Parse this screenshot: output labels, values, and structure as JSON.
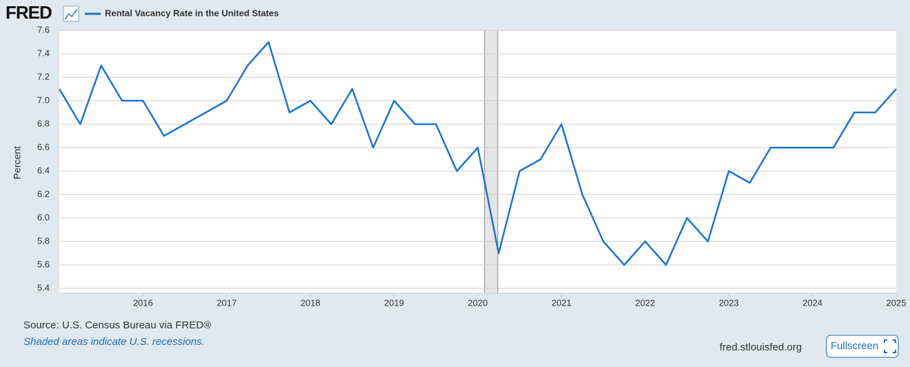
{
  "header": {
    "logo": "FRED"
  },
  "chart_data": {
    "type": "line",
    "y_label": "Percent",
    "x": [
      2015,
      2015.25,
      2015.5,
      2015.75,
      2016,
      2016.25,
      2016.5,
      2016.75,
      2017,
      2017.25,
      2017.5,
      2017.75,
      2018,
      2018.25,
      2018.5,
      2018.75,
      2019,
      2019.25,
      2019.5,
      2019.75,
      2020,
      2020.25,
      2020.5,
      2020.75,
      2021,
      2021.25,
      2021.5,
      2021.75,
      2022,
      2022.25,
      2022.5,
      2022.75,
      2023,
      2023.25,
      2023.5,
      2023.75,
      2024,
      2024.25,
      2024.5,
      2024.75,
      2025
    ],
    "series": [
      {
        "name": "Rental Vacancy Rate in the United States",
        "color": "#1a73d4",
        "values": [
          7.1,
          6.8,
          7.3,
          7.0,
          7.0,
          6.7,
          6.8,
          6.9,
          7.0,
          7.3,
          7.5,
          6.9,
          7.0,
          6.8,
          7.1,
          6.6,
          7.0,
          6.8,
          6.8,
          6.4,
          6.6,
          5.7,
          6.4,
          6.5,
          6.8,
          6.2,
          5.8,
          5.6,
          5.8,
          5.6,
          6.0,
          5.8,
          6.4,
          6.3,
          6.6,
          6.6,
          6.6,
          6.6,
          6.9,
          6.9,
          7.1
        ]
      }
    ],
    "xlim": [
      2015,
      2025
    ],
    "xticks": [
      2016,
      2017,
      2018,
      2019,
      2020,
      2021,
      2022,
      2023,
      2024,
      2025
    ],
    "ylim": [
      5.4,
      7.6
    ],
    "yticks": [
      5.4,
      5.6,
      5.8,
      {
        "value": 6,
        "label": "6.0"
      },
      6.2,
      6.4,
      6.6,
      6.8,
      {
        "value": 7,
        "label": "7.0"
      },
      7.2,
      7.4,
      7.6
    ],
    "grid": true,
    "recessions": [
      [
        2020.08,
        2020.24
      ]
    ],
    "recession_color": "#e5e5e5"
  },
  "footer": {
    "source": "Source: U.S. Census Bureau via FRED®",
    "note": "Shaded areas indicate U.S. recessions.",
    "site": "fred.stlouisfed.org",
    "button": "Fullscreen"
  }
}
